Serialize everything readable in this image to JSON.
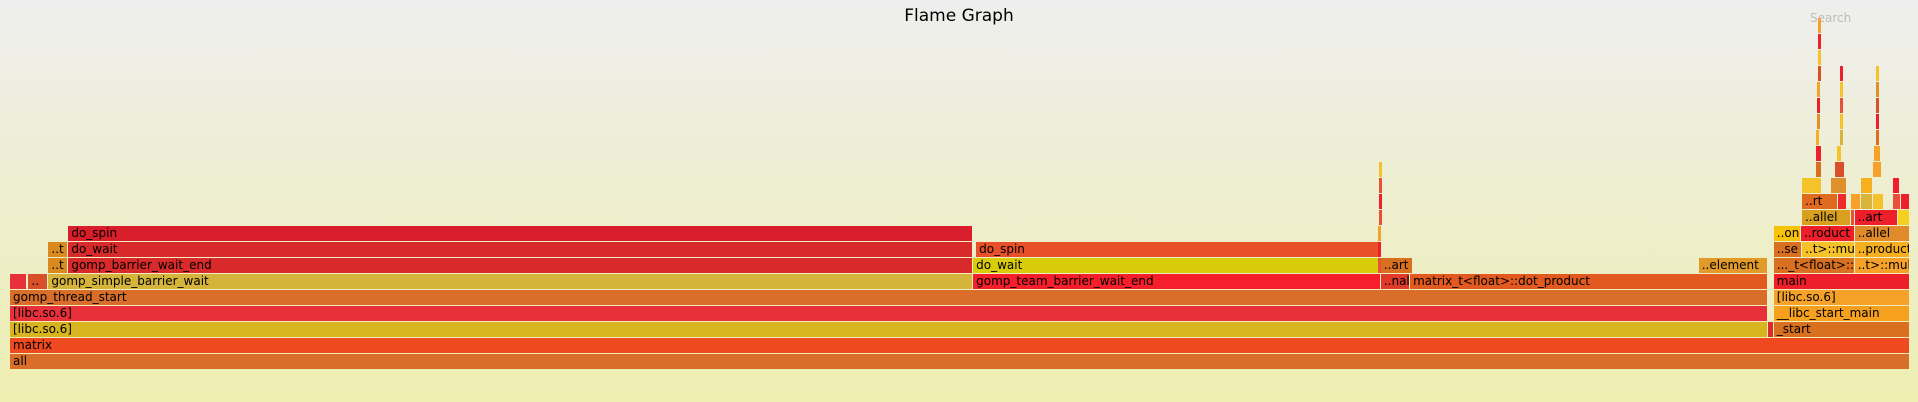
{
  "title": "Flame Graph",
  "search": {
    "label": "Search"
  },
  "frames": [
    {
      "level": 0,
      "label": "all",
      "color": "#d86e2a",
      "interactive": true,
      "start": 0.0,
      "end": 1.0
    },
    {
      "level": 1,
      "label": "matrix",
      "color": "#ef4a1f",
      "interactive": true,
      "start": 0.0,
      "end": 1.0
    },
    {
      "level": 2,
      "label": "[libc.so.6]",
      "color": "#d8b41f",
      "interactive": true,
      "start": 0.0,
      "end": 0.9254
    },
    {
      "level": 2,
      "label": "",
      "color": "#e02a2a",
      "interactive": true,
      "start": 0.9254,
      "end": 0.9283
    },
    {
      "level": 2,
      "label": "_start",
      "color": "#d9701f",
      "interactive": true,
      "start": 0.9283,
      "end": 1.0
    },
    {
      "level": 3,
      "label": "[libc.so.6]",
      "color": "#e8303a",
      "interactive": true,
      "start": 0.0,
      "end": 0.9254
    },
    {
      "level": 3,
      "label": "__libc_start_main",
      "color": "#f6a01f",
      "interactive": true,
      "start": 0.9283,
      "end": 1.0
    },
    {
      "level": 4,
      "label": "gomp_thread_start",
      "color": "#d86e2a",
      "interactive": true,
      "start": 0.0,
      "end": 0.9254
    },
    {
      "level": 4,
      "label": "[libc.so.6]",
      "color": "#f6a22a",
      "interactive": true,
      "start": 0.9283,
      "end": 1.0
    },
    {
      "level": 5,
      "label": "",
      "color": "#e8303a",
      "interactive": true,
      "start": 0.0,
      "end": 0.0089
    },
    {
      "level": 5,
      "label": "..",
      "color": "#d8502a",
      "interactive": true,
      "start": 0.0097,
      "end": 0.0202
    },
    {
      "level": 5,
      "label": "gomp_simple_barrier_wait",
      "color": "#d4b43a",
      "interactive": true,
      "start": 0.0202,
      "end": 0.5069
    },
    {
      "level": 5,
      "label": "gomp_team_barrier_wait_end",
      "color": "#f51e2a",
      "interactive": true,
      "start": 0.5069,
      "end": 0.7215
    },
    {
      "level": 5,
      "label": "..nal",
      "color": "#e03a2a",
      "interactive": true,
      "start": 0.7215,
      "end": 0.7369
    },
    {
      "level": 5,
      "label": "matrix_t<float>::dot_product",
      "color": "#e25a1f",
      "interactive": true,
      "start": 0.7369,
      "end": 0.9254
    },
    {
      "level": 5,
      "label": "main",
      "color": "#ee1f2a",
      "interactive": true,
      "start": 0.9283,
      "end": 1.0
    },
    {
      "level": 6,
      "label": "..t",
      "color": "#d98a1f",
      "interactive": true,
      "start": 0.0202,
      "end": 0.0307
    },
    {
      "level": 6,
      "label": "gomp_barrier_wait_end",
      "color": "#d82a2a",
      "interactive": true,
      "start": 0.0307,
      "end": 0.5069
    },
    {
      "level": 6,
      "label": "do_wait",
      "color": "#d8cc0a",
      "interactive": true,
      "start": 0.5069,
      "end": 0.7215
    },
    {
      "level": 6,
      "label": "..art",
      "color": "#d9701f",
      "interactive": true,
      "start": 0.7215,
      "end": 0.7385
    },
    {
      "level": 6,
      "label": "..element",
      "color": "#e29a2a",
      "interactive": true,
      "start": 0.8888,
      "end": 0.9254
    },
    {
      "level": 6,
      "label": "..._t<float>::div",
      "color": "#d9701f",
      "interactive": true,
      "start": 0.9283,
      "end": 0.9709
    },
    {
      "level": 6,
      "label": "..t>::mul",
      "color": "#f6a22a",
      "interactive": true,
      "start": 0.9709,
      "end": 1.0
    },
    {
      "level": 7,
      "label": "..t",
      "color": "#d98a1f",
      "interactive": true,
      "start": 0.0202,
      "end": 0.0307
    },
    {
      "level": 7,
      "label": "do_wait",
      "color": "#d82a2a",
      "interactive": true,
      "start": 0.0307,
      "end": 0.5069
    },
    {
      "level": 7,
      "label": "do_spin",
      "color": "#e8502a",
      "interactive": true,
      "start": 0.5085,
      "end": 0.7215
    },
    {
      "level": 7,
      "label": "..se",
      "color": "#d9701f",
      "interactive": true,
      "start": 0.9283,
      "end": 0.9432
    },
    {
      "level": 7,
      "label": "..t>::mul",
      "color": "#f6c22a",
      "interactive": true,
      "start": 0.9432,
      "end": 0.9709
    },
    {
      "level": 7,
      "label": "..product",
      "color": "#f6b01f",
      "interactive": true,
      "start": 0.9709,
      "end": 1.0
    },
    {
      "level": 8,
      "label": "do_spin",
      "color": "#d81e2a",
      "interactive": true,
      "start": 0.0307,
      "end": 0.5069
    },
    {
      "level": 8,
      "label": "..on",
      "color": "#f6c20a",
      "interactive": true,
      "start": 0.9283,
      "end": 0.9426
    },
    {
      "level": 8,
      "label": "..roduct",
      "color": "#ee1f2a",
      "interactive": true,
      "start": 0.9426,
      "end": 0.9709
    },
    {
      "level": 8,
      "label": "..allel",
      "color": "#e08a2a",
      "interactive": true,
      "start": 0.9709,
      "end": 1.0
    },
    {
      "level": 9,
      "label": "..allel",
      "color": "#d9a01f",
      "interactive": true,
      "start": 0.9432,
      "end": 0.9689
    },
    {
      "level": 9,
      "label": "",
      "color": "#e8503a",
      "interactive": true,
      "start": 0.9689,
      "end": 0.9709
    },
    {
      "level": 9,
      "label": "..art",
      "color": "#ee1f2a",
      "interactive": true,
      "start": 0.9709,
      "end": 0.9936
    },
    {
      "level": 9,
      "label": "",
      "color": "#f6d01f",
      "interactive": true,
      "start": 0.9936,
      "end": 1.0
    },
    {
      "level": 10,
      "label": "..rt",
      "color": "#e06a1f",
      "interactive": true,
      "start": 0.9432,
      "end": 0.9622
    },
    {
      "level": 10,
      "label": "",
      "color": "#ee2a2a",
      "interactive": true,
      "start": 0.9622,
      "end": 0.9669
    },
    {
      "level": 10,
      "label": "",
      "color": "#f6a22a",
      "interactive": true,
      "start": 0.9689,
      "end": 0.9741
    },
    {
      "level": 10,
      "label": "",
      "color": "#d8b43a",
      "interactive": true,
      "start": 0.9741,
      "end": 0.9806
    },
    {
      "level": 10,
      "label": "",
      "color": "#f6c22a",
      "interactive": true,
      "start": 0.9806,
      "end": 0.9865
    },
    {
      "level": 10,
      "label": "",
      "color": "#e8503a",
      "interactive": true,
      "start": 0.991,
      "end": 0.9955
    },
    {
      "level": 10,
      "label": "",
      "color": "#ee1f2a",
      "interactive": true,
      "start": 0.9955,
      "end": 1.0
    },
    {
      "level": 11,
      "label": "",
      "color": "#f6c22a",
      "interactive": true,
      "start": 0.9432,
      "end": 0.9535
    },
    {
      "level": 11,
      "label": "",
      "color": "#e0902a",
      "interactive": true,
      "start": 0.9586,
      "end": 0.9669
    },
    {
      "level": 11,
      "label": "",
      "color": "#f6b01f",
      "interactive": true,
      "start": 0.9741,
      "end": 0.9806
    },
    {
      "level": 11,
      "label": "",
      "color": "#ee1f2a",
      "interactive": true,
      "start": 0.991,
      "end": 0.9949
    },
    {
      "level": 12,
      "label": "",
      "color": "#d9701f",
      "interactive": true,
      "start": 0.9503,
      "end": 0.9535
    },
    {
      "level": 12,
      "label": "",
      "color": "#d8502a",
      "interactive": true,
      "start": 0.9606,
      "end": 0.9657
    },
    {
      "level": 12,
      "label": "",
      "color": "#f6a22a",
      "interactive": true,
      "start": 0.9806,
      "end": 0.9851
    },
    {
      "level": 13,
      "label": "",
      "color": "#ee1f2a",
      "interactive": true,
      "start": 0.9503,
      "end": 0.9535
    },
    {
      "level": 13,
      "label": "",
      "color": "#f6c22a",
      "interactive": true,
      "start": 0.9618,
      "end": 0.9644
    },
    {
      "level": 13,
      "label": "",
      "color": "#f6a22a",
      "interactive": true,
      "start": 0.9813,
      "end": 0.9845
    },
    {
      "level": 14,
      "label": "",
      "color": "#f6b01f",
      "interactive": true,
      "start": 0.9503,
      "end": 0.9528
    },
    {
      "level": 14,
      "label": "",
      "color": "#d8b43a",
      "interactive": true,
      "start": 0.9631,
      "end": 0.9644
    },
    {
      "level": 14,
      "label": "",
      "color": "#d9701f",
      "interactive": true,
      "start": 0.9819,
      "end": 0.9838
    },
    {
      "level": 15,
      "label": "",
      "color": "#e0902a",
      "interactive": true,
      "start": 0.9509,
      "end": 0.9528
    },
    {
      "level": 15,
      "label": "",
      "color": "#f6c22a",
      "interactive": true,
      "start": 0.9631,
      "end": 0.9644
    },
    {
      "level": 15,
      "label": "",
      "color": "#ee1f2a",
      "interactive": true,
      "start": 0.9819,
      "end": 0.9832
    },
    {
      "level": 16,
      "label": "",
      "color": "#ee1f2a",
      "interactive": true,
      "start": 0.9509,
      "end": 0.9522
    },
    {
      "level": 16,
      "label": "",
      "color": "#e8503a",
      "interactive": true,
      "start": 0.9631,
      "end": 0.9644
    },
    {
      "level": 16,
      "label": "",
      "color": "#d8502a",
      "interactive": true,
      "start": 0.9819,
      "end": 0.9832
    },
    {
      "level": 17,
      "label": "",
      "color": "#f6a22a",
      "interactive": true,
      "start": 0.9509,
      "end": 0.9522
    },
    {
      "level": 17,
      "label": "",
      "color": "#f6c22a",
      "interactive": true,
      "start": 0.9631,
      "end": 0.9637
    },
    {
      "level": 17,
      "label": "",
      "color": "#e0902a",
      "interactive": true,
      "start": 0.9819,
      "end": 0.9826
    },
    {
      "level": 18,
      "label": "",
      "color": "#d8502a",
      "interactive": true,
      "start": 0.9516,
      "end": 0.9522
    },
    {
      "level": 18,
      "label": "",
      "color": "#ee1f2a",
      "interactive": true,
      "start": 0.9631,
      "end": 0.9637
    },
    {
      "level": 18,
      "label": "",
      "color": "#f6c22a",
      "interactive": true,
      "start": 0.9819,
      "end": 0.9826
    },
    {
      "level": 19,
      "label": "",
      "color": "#f6c22a",
      "interactive": true,
      "start": 0.9516,
      "end": 0.9522
    },
    {
      "level": 20,
      "label": "",
      "color": "#ee1f2a",
      "interactive": true,
      "start": 0.9516,
      "end": 0.9522
    },
    {
      "level": 21,
      "label": "",
      "color": "#f6a22a",
      "interactive": true,
      "start": 0.9516,
      "end": 0.9522
    },
    {
      "level": 6,
      "label": "",
      "color": "#e8503a",
      "interactive": true,
      "start": 0.7202,
      "end": 0.7215
    },
    {
      "level": 7,
      "label": "",
      "color": "#ee1f2a",
      "interactive": true,
      "start": 0.7202,
      "end": 0.7212
    },
    {
      "level": 8,
      "label": "",
      "color": "#f6a22a",
      "interactive": true,
      "start": 0.7202,
      "end": 0.7212
    },
    {
      "level": 9,
      "label": "",
      "color": "#e8503a",
      "interactive": true,
      "start": 0.7206,
      "end": 0.7212
    },
    {
      "level": 10,
      "label": "",
      "color": "#ee1f2a",
      "interactive": true,
      "start": 0.7206,
      "end": 0.7212
    },
    {
      "level": 11,
      "label": "",
      "color": "#e8503a",
      "interactive": true,
      "start": 0.7206,
      "end": 0.7212
    },
    {
      "level": 12,
      "label": "",
      "color": "#f6c22a",
      "interactive": true,
      "start": 0.7206,
      "end": 0.7212
    }
  ]
}
